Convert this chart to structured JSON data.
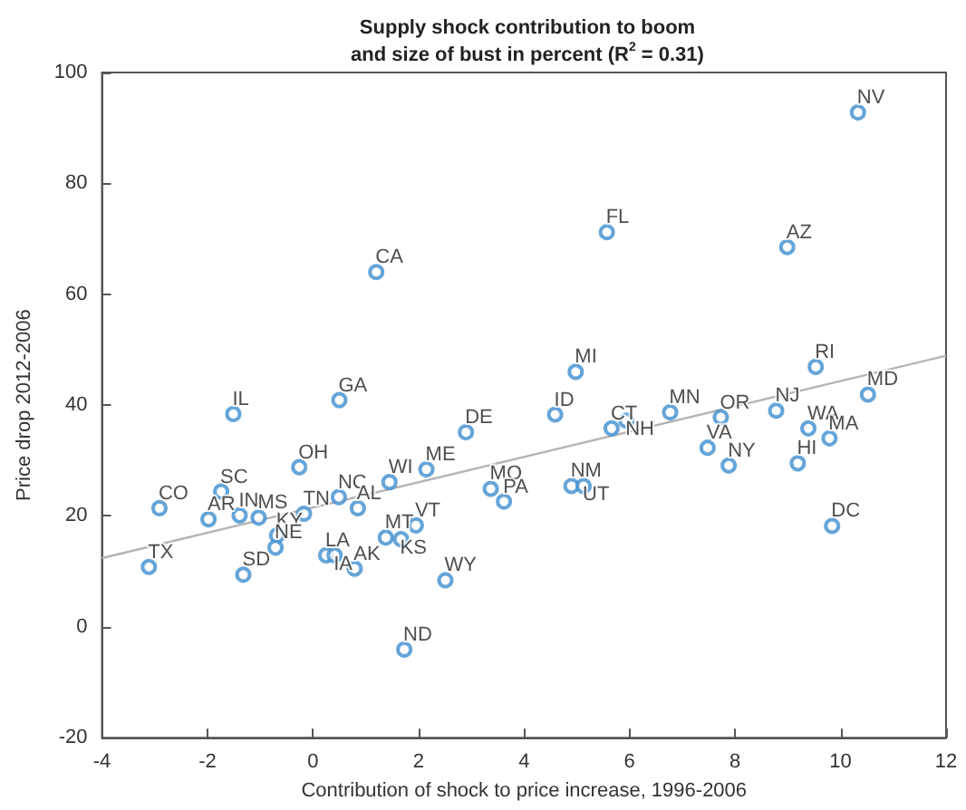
{
  "chart_data": {
    "type": "scatter",
    "title": "Supply shock contribution to boom\nand size of bust in percent (R$^{2}$ = 0.31)",
    "xlabel": "Contribution of shock to price increase, 1996-2006",
    "ylabel": "Price drop 2012-2006",
    "xlim": [
      -4,
      12
    ],
    "xticks": [
      -4,
      -2,
      0,
      2,
      4,
      6,
      8,
      10,
      12
    ],
    "ylim": [
      -20,
      100
    ],
    "yticks": [
      -20,
      0,
      20,
      40,
      60,
      80,
      100
    ],
    "grid": false,
    "marker": "circle",
    "series": [
      {
        "color": "#3f8fd0",
        "x": [
          10.33,
          5.57,
          8.99,
          4.98,
          9.53,
          10.52,
          1.2,
          0.5,
          -1.51,
          2.9,
          -0.26,
          2.15,
          1.45,
          -1.74,
          0.49,
          -2.91,
          0.85,
          3.37,
          3.62,
          -0.17,
          -1.98,
          -1.39,
          -1.03,
          -0.68,
          -0.71,
          1.38,
          1.67,
          1.95,
          0.25,
          0.41,
          0.79,
          -3.11,
          -1.32,
          2.51,
          1.73,
          4.59,
          5.66,
          5.94,
          6.77,
          7.73,
          7.48,
          7.88,
          8.78,
          9.39,
          9.79,
          9.19,
          9.84,
          4.9,
          5.13
        ],
        "values": [
          92.8,
          71.2,
          68.5,
          46.0,
          46.9,
          41.9,
          64.0,
          40.9,
          38.4,
          35.1,
          28.8,
          28.4,
          26.1,
          24.4,
          23.4,
          21.4,
          21.4,
          24.9,
          22.6,
          20.4,
          19.4,
          20.1,
          19.7,
          16.5,
          14.3,
          16.1,
          15.8,
          18.3,
          12.9,
          12.9,
          10.5,
          10.8,
          9.4,
          8.4,
          -4.1,
          38.3,
          35.8,
          37.2,
          38.7,
          37.8,
          32.3,
          29.1,
          39.0,
          35.8,
          34.0,
          29.5,
          18.2,
          25.4,
          25.4
        ],
        "value_labels": [
          "NV",
          "FL",
          "AZ",
          "MI",
          "RI",
          "MD",
          "CA",
          "GA",
          "IL",
          "DE",
          "OH",
          "ME",
          "WI",
          "SC",
          "NC",
          "CO",
          "AL",
          "MO",
          "PA",
          "TN",
          "AR",
          "IN",
          "MS",
          "KY",
          "NE",
          "MT",
          "KS",
          "VT",
          "LA",
          "IA",
          "AK",
          "TX",
          "SD",
          "WY",
          "ND",
          "ID",
          "CT",
          "NH",
          "MN",
          "OR",
          "VA",
          "NY",
          "NJ",
          "WA",
          "MA",
          "HI",
          "DC",
          "NM",
          "UT"
        ]
      },
      {
        "type": "line",
        "color": "#b4b4b4",
        "marker": "none",
        "line_style": "solid",
        "x": [
          -4,
          12
        ],
        "values": [
          12.4,
          48.9
        ]
      }
    ]
  }
}
